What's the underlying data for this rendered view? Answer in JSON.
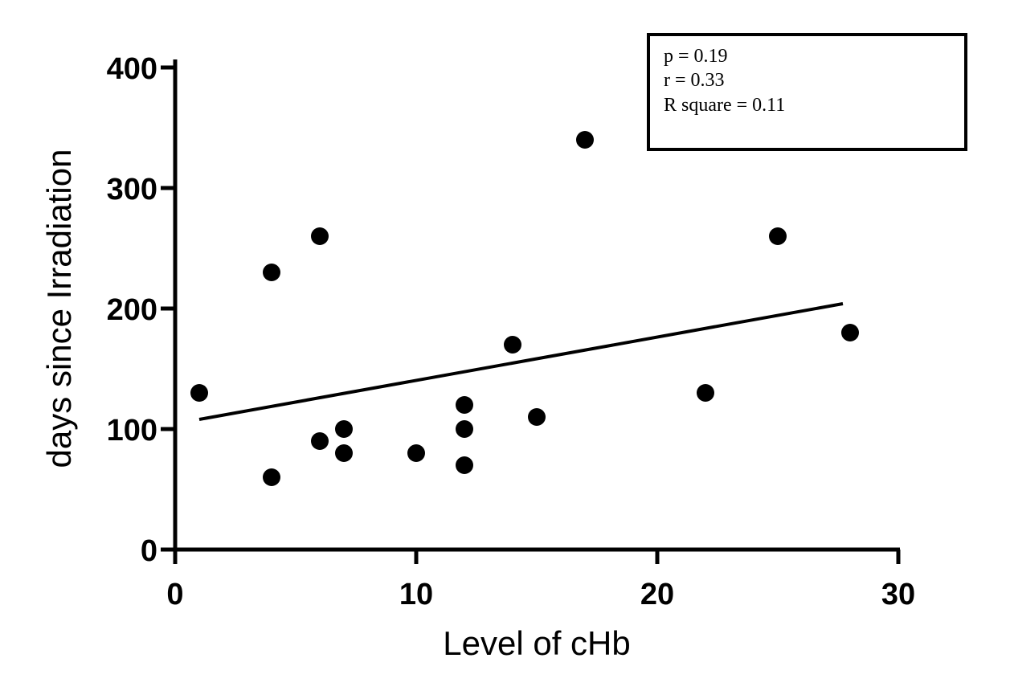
{
  "chart_data": {
    "type": "scatter",
    "title": "",
    "xlabel": "Level of cHb",
    "ylabel": "days since Irradiation",
    "xlim": [
      0,
      30
    ],
    "ylim": [
      0,
      400
    ],
    "x_ticks": [
      0,
      10,
      20,
      30
    ],
    "y_ticks": [
      0,
      100,
      200,
      300,
      400
    ],
    "x_tick_labels": [
      "0",
      "10",
      "20",
      "30"
    ],
    "y_tick_labels": [
      "0",
      "100",
      "200",
      "300",
      "400"
    ],
    "grid": false,
    "legend": "none",
    "point_color": "#000000",
    "series": [
      {
        "x": [
          1,
          4,
          4,
          6,
          6,
          7,
          7,
          10,
          12,
          12,
          12,
          14,
          15,
          17,
          22,
          25,
          28
        ],
        "y": [
          130,
          230,
          60,
          260,
          90,
          100,
          80,
          80,
          120,
          100,
          70,
          170,
          110,
          340,
          130,
          260,
          180
        ]
      }
    ],
    "regression_line": {
      "x": [
        1,
        27.7
      ],
      "y": [
        108,
        204
      ]
    },
    "annotation": {
      "lines": [
        "p = 0.19",
        "r = 0.33",
        "R square = 0.11"
      ],
      "placement": "top-right"
    }
  }
}
